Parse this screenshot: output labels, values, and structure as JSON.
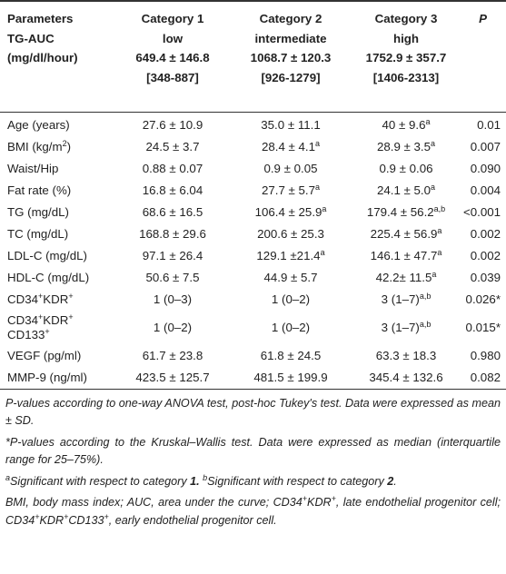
{
  "header": {
    "col0": [
      "Parameters",
      "TG-AUC",
      "(mg/dl/hour)"
    ],
    "cat1": [
      "Category 1",
      "low",
      "649.4 ± 146.8",
      "[348-887]"
    ],
    "cat2": [
      "Category 2",
      "intermediate",
      "1068.7 ± 120.3",
      "[926-1279]"
    ],
    "cat3": [
      "Category 3",
      "high",
      "1752.9 ± 357.7",
      "[1406-2313]"
    ],
    "p": "P"
  },
  "rows": [
    {
      "label": "Age (years)",
      "c1": "27.6 ± 10.9",
      "c2": "35.0 ± 11.1",
      "c3": "40 ± 9.6",
      "c3sup": "a",
      "p": "0.01"
    },
    {
      "label": "BMI (kg/m",
      "labelsup": "2",
      "labelend": ")",
      "c1": "24.5 ± 3.7",
      "c2": "28.4 ± 4.1",
      "c2sup": "a",
      "c3": "28.9 ± 3.5",
      "c3sup": "a",
      "p": "0.007"
    },
    {
      "label": "Waist/Hip",
      "c1": "0.88 ± 0.07",
      "c2": "0.9 ± 0.05",
      "c3": "0.9 ± 0.06",
      "p": "0.090"
    },
    {
      "label": "Fat rate (%)",
      "c1": "16.8 ± 6.04",
      "c2": "27.7 ± 5.7",
      "c2sup": "a",
      "c3": "24.1 ± 5.0",
      "c3sup": "a",
      "p": "0.004"
    },
    {
      "label": "TG (mg/dL)",
      "c1": "68.6 ± 16.5",
      "c2": "106.4 ± 25.9",
      "c2sup": "a",
      "c3": "179.4 ± 56.2",
      "c3sup": "a,b",
      "p": "<0.001"
    },
    {
      "label": "TC (mg/dL)",
      "c1": "168.8 ± 29.6",
      "c2": "200.6 ± 25.3",
      "c3": "225.4 ± 56.9",
      "c3sup": "a",
      "p": "0.002"
    },
    {
      "label": "LDL-C (mg/dL)",
      "c1": "97.1 ± 26.4",
      "c2": "129.1 ±21.4",
      "c2sup": "a",
      "c3": "146.1 ± 47.7",
      "c3sup": "a",
      "p": "0.002"
    },
    {
      "label": "HDL-C (mg/dL)",
      "c1": "50.6 ± 7.5",
      "c2": "44.9 ± 5.7",
      "c3": "42.2± 11.5",
      "c3sup": "a",
      "p": "0.039"
    },
    {
      "label": "CD34",
      "labelsup": "+",
      "labelmid": "KDR",
      "labelsup2": "+",
      "c1": "1 (0–3)",
      "c2": "1 (0–2)",
      "c3": "3 (1–7)",
      "c3sup": "a,b",
      "p": "0.026*"
    },
    {
      "label": "CD34",
      "labelsup": "+",
      "labelmid": "KDR",
      "labelsup2": "+",
      "labelline2": "CD133",
      "labelsup3": "+",
      "c1": "1 (0–2)",
      "c2": "1 (0–2)",
      "c3": "3 (1–7)",
      "c3sup": "a,b",
      "p": "0.015*"
    },
    {
      "label": "VEGF (pg/ml)",
      "c1": "61.7 ± 23.8",
      "c2": "61.8 ± 24.5",
      "c3": "63.3 ± 18.3",
      "p": "0.980"
    },
    {
      "label": "MMP-9 (ng/ml)",
      "c1": "423.5 ± 125.7",
      "c2": "481.5 ± 199.9",
      "c3": "345.4 ± 132.6",
      "p": "0.082"
    }
  ],
  "notes": {
    "n1": "P-values according to one-way ANOVA test, post-hoc Tukey's test. Data were expressed as mean ± SD.",
    "n2": "*P-values according to the Kruskal–Wallis test. Data were expressed as median (interquartile range for 25–75%).",
    "n3_sup_a": "a",
    "n3_a": "Significant with respect to category ",
    "n3_a_num": "1.",
    "n3_sup_b": "b",
    "n3_b": "Significant with respect to category ",
    "n3_b_num": "2",
    "n3_end": ".",
    "n4_1": "BMI, body mass index; AUC, area under the curve; CD34",
    "n4_sup1": "+",
    "n4_2": "KDR",
    "n4_sup2": "+",
    "n4_3": ", late endothelial progenitor cell; CD34",
    "n4_sup3": "+",
    "n4_4": "KDR",
    "n4_sup4": "+",
    "n4_5": "CD133",
    "n4_sup5": "+",
    "n4_6": ", early endothelial progenitor cell."
  }
}
